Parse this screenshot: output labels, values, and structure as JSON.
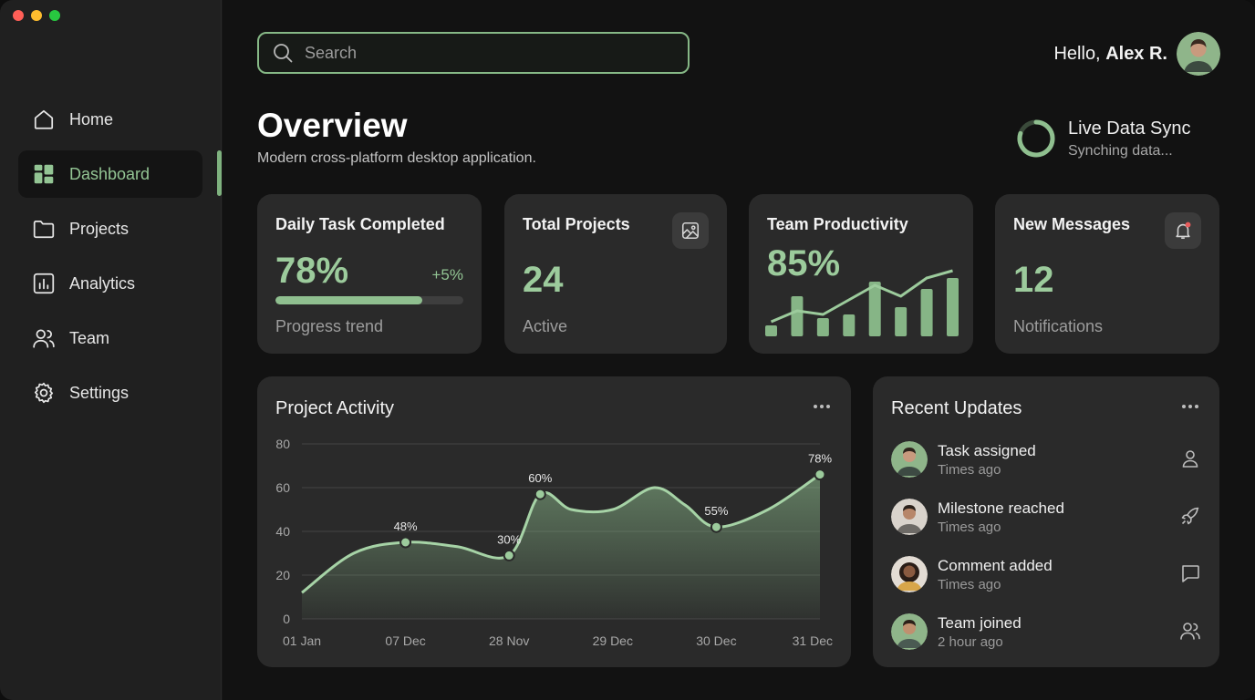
{
  "window": {
    "controls": [
      "close",
      "minimize",
      "maximize"
    ],
    "colors": {
      "close": "#ff5f57",
      "minimize": "#febc2e",
      "maximize": "#28c840"
    }
  },
  "colors": {
    "accent": "#93c594",
    "accent_dark": "#7fb27f",
    "card_bg": "#2a2a2a",
    "main_bg": "#121212",
    "sidebar_bg": "#202020"
  },
  "sidebar": {
    "items": [
      {
        "label": "Home",
        "icon": "home-icon",
        "active": false
      },
      {
        "label": "Dashboard",
        "icon": "dashboard-icon",
        "active": true
      },
      {
        "label": "Projects",
        "icon": "folder-icon",
        "active": false
      },
      {
        "label": "Analytics",
        "icon": "analytics-icon",
        "active": false
      },
      {
        "label": "Team",
        "icon": "team-icon",
        "active": false
      },
      {
        "label": "Settings",
        "icon": "gear-icon",
        "active": false
      }
    ]
  },
  "header": {
    "search_placeholder": "Search",
    "greeting_prefix": "Hello,",
    "user_name": "Alex R."
  },
  "page": {
    "title": "Overview",
    "subtitle": "Modern cross-platform desktop application."
  },
  "sync": {
    "title": "Live Data Sync",
    "status": "Synching data..."
  },
  "cards": {
    "daily": {
      "title": "Daily Task Completed",
      "value": "78%",
      "delta": "+5%",
      "progress": 0.78,
      "caption": "Progress trend"
    },
    "projects": {
      "title": "Total Projects",
      "value": "24",
      "caption": "Active",
      "icon": "image-frame-icon"
    },
    "productivity": {
      "title": "Team Productivity",
      "value": "85%",
      "bars": [
        0.15,
        0.55,
        0.25,
        0.3,
        0.75,
        0.4,
        0.65,
        0.8
      ],
      "trend": [
        0.2,
        0.35,
        0.3,
        0.5,
        0.7,
        0.55,
        0.8,
        0.9
      ]
    },
    "messages": {
      "title": "New Messages",
      "value": "12",
      "caption": "Notifications",
      "icon": "bell-icon"
    }
  },
  "activity": {
    "title": "Project Activity",
    "menu_icon": "more-dots-icon"
  },
  "chart_data": {
    "type": "area",
    "title": "Project Activity",
    "xlabel": "",
    "ylabel": "",
    "ylim": [
      0,
      80
    ],
    "yticks": [
      0,
      20,
      40,
      60,
      80
    ],
    "categories": [
      "01 Jan",
      "07 Dec",
      "28 Nov",
      "29 Dec",
      "30 Dec",
      "31 Dec"
    ],
    "curve_x": [
      0,
      0.5,
      1,
      1.5,
      2,
      2.3,
      2.6,
      3.0,
      3.4,
      3.7,
      4.0,
      4.5,
      5
    ],
    "curve_y": [
      12,
      30,
      35,
      33,
      29,
      57,
      50,
      50,
      60,
      52,
      42,
      50,
      66
    ],
    "points": [
      {
        "x": 1,
        "y": 35,
        "label": "48%"
      },
      {
        "x": 2,
        "y": 29,
        "label": "30%"
      },
      {
        "x": 2.3,
        "y": 57,
        "label": "60%"
      },
      {
        "x": 4.0,
        "y": 42,
        "label": "55%"
      },
      {
        "x": 5,
        "y": 66,
        "label": "78%"
      }
    ],
    "grid": true,
    "fill_color": "#8fbf8f"
  },
  "updates": {
    "title": "Recent Updates",
    "menu_icon": "more-dots-icon",
    "items": [
      {
        "title": "Task assigned",
        "time": "Times ago",
        "icon": "user-icon"
      },
      {
        "title": "Milestone reached",
        "time": "Times ago",
        "icon": "rocket-icon"
      },
      {
        "title": "Comment added",
        "time": "Times ago",
        "icon": "comment-icon"
      },
      {
        "title": "Team joined",
        "time": "2 hour ago",
        "icon": "team-icon"
      }
    ]
  }
}
